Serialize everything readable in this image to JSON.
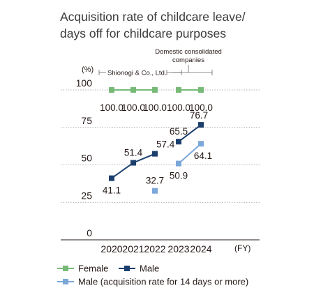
{
  "title_lines": [
    "Acquisition rate of childcare leave/",
    "days off for childcare purposes"
  ],
  "unit_label": "(%)",
  "fy_label": "(FY)",
  "segments": {
    "shionogi": "Shionogi & Co., Ltd.",
    "domestic_line1": "Domestic consolidated",
    "domestic_line2": "companies"
  },
  "chart_data": {
    "type": "line",
    "categories": [
      "2020",
      "2021",
      "2022",
      "2023",
      "2024"
    ],
    "ylim": [
      0,
      100
    ],
    "yticks": [
      0,
      25,
      50,
      75,
      100
    ],
    "grid": true,
    "legend_position": "bottom",
    "series": [
      {
        "name": "Female",
        "color": "#77b977",
        "marker": "square",
        "values": [
          100.0,
          100.0,
          100.0,
          100.0,
          100.0
        ],
        "labels": [
          "100.0",
          "100.0",
          "100.0",
          "100.0",
          "100.0"
        ],
        "segments": [
          [
            0,
            2
          ],
          [
            3,
            4
          ]
        ]
      },
      {
        "name": "Male",
        "color": "#1b3e6d",
        "marker": "square",
        "values": [
          41.1,
          51.4,
          57.4,
          65.5,
          76.7
        ],
        "labels": [
          "41.1",
          "51.4",
          "57.4",
          "65.5",
          "76.7"
        ],
        "segments": [
          [
            0,
            2
          ],
          [
            3,
            4
          ]
        ]
      },
      {
        "name": "Male (acquisition rate for 14 days or more)",
        "color": "#7ba7d9",
        "marker": "square",
        "values": [
          null,
          null,
          32.7,
          50.9,
          64.1
        ],
        "labels": [
          "",
          "",
          "32.7",
          "50.9",
          "64.1"
        ],
        "segments": [
          [
            2,
            2
          ],
          [
            3,
            4
          ]
        ]
      }
    ]
  }
}
